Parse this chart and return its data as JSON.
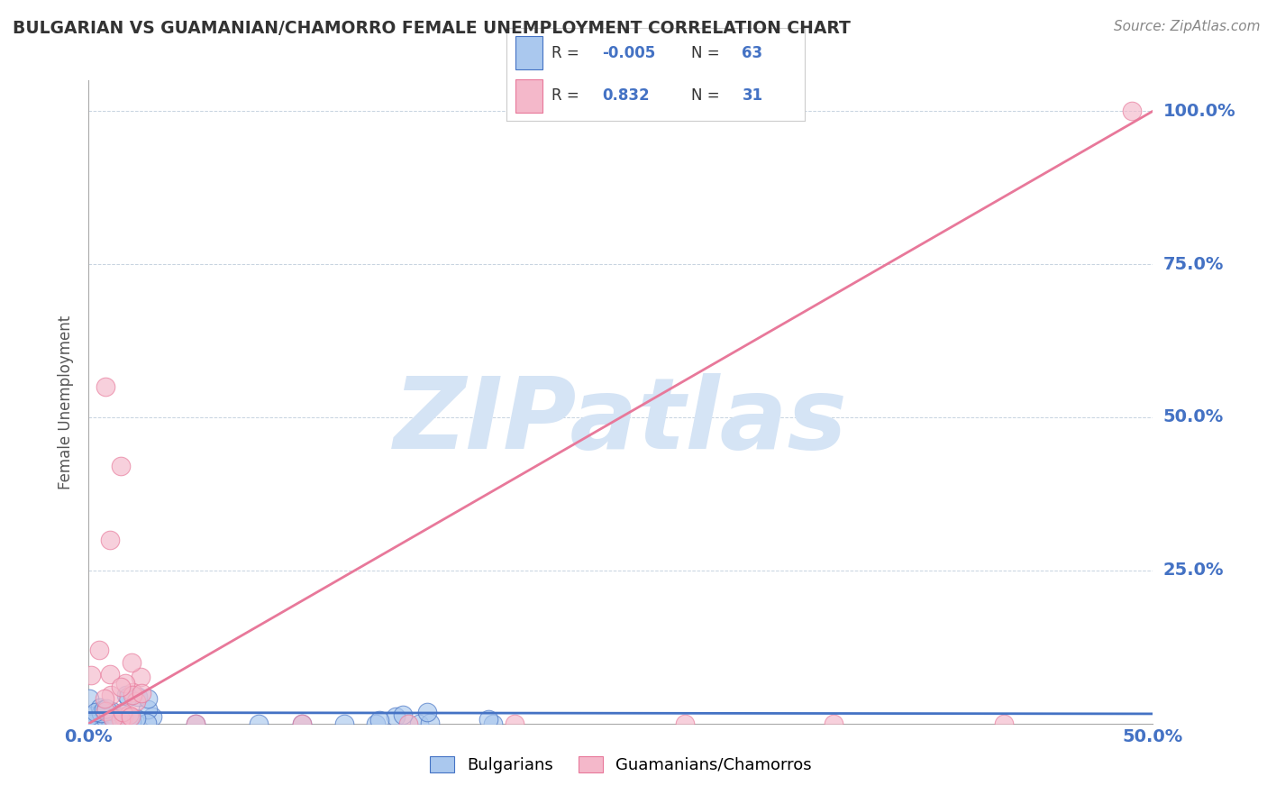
{
  "title": "BULGARIAN VS GUAMANIAN/CHAMORRO FEMALE UNEMPLOYMENT CORRELATION CHART",
  "source": "Source: ZipAtlas.com",
  "ylabel": "Female Unemployment",
  "xlim": [
    0.0,
    0.5
  ],
  "ylim": [
    0.0,
    1.05
  ],
  "title_color": "#333333",
  "source_color": "#888888",
  "tick_label_color": "#4472c4",
  "ylabel_color": "#555555",
  "watermark_text": "ZIPatlas",
  "watermark_color": "#d5e4f5",
  "legend_r1": "-0.005",
  "legend_n1": "63",
  "legend_r2": "0.832",
  "legend_n2": "31",
  "legend_value_color": "#4472c4",
  "legend_label_color": "#333333",
  "bulgarian_color": "#aac8ee",
  "chamorro_color": "#f4b8ca",
  "bulgarian_edge": "#4472c4",
  "chamorro_edge": "#e8789a",
  "reg_line_blue_color": "#4472c4",
  "reg_line_pink_color": "#e8789a",
  "grid_color": "#b8c8d8",
  "bg_color": "#ffffff"
}
